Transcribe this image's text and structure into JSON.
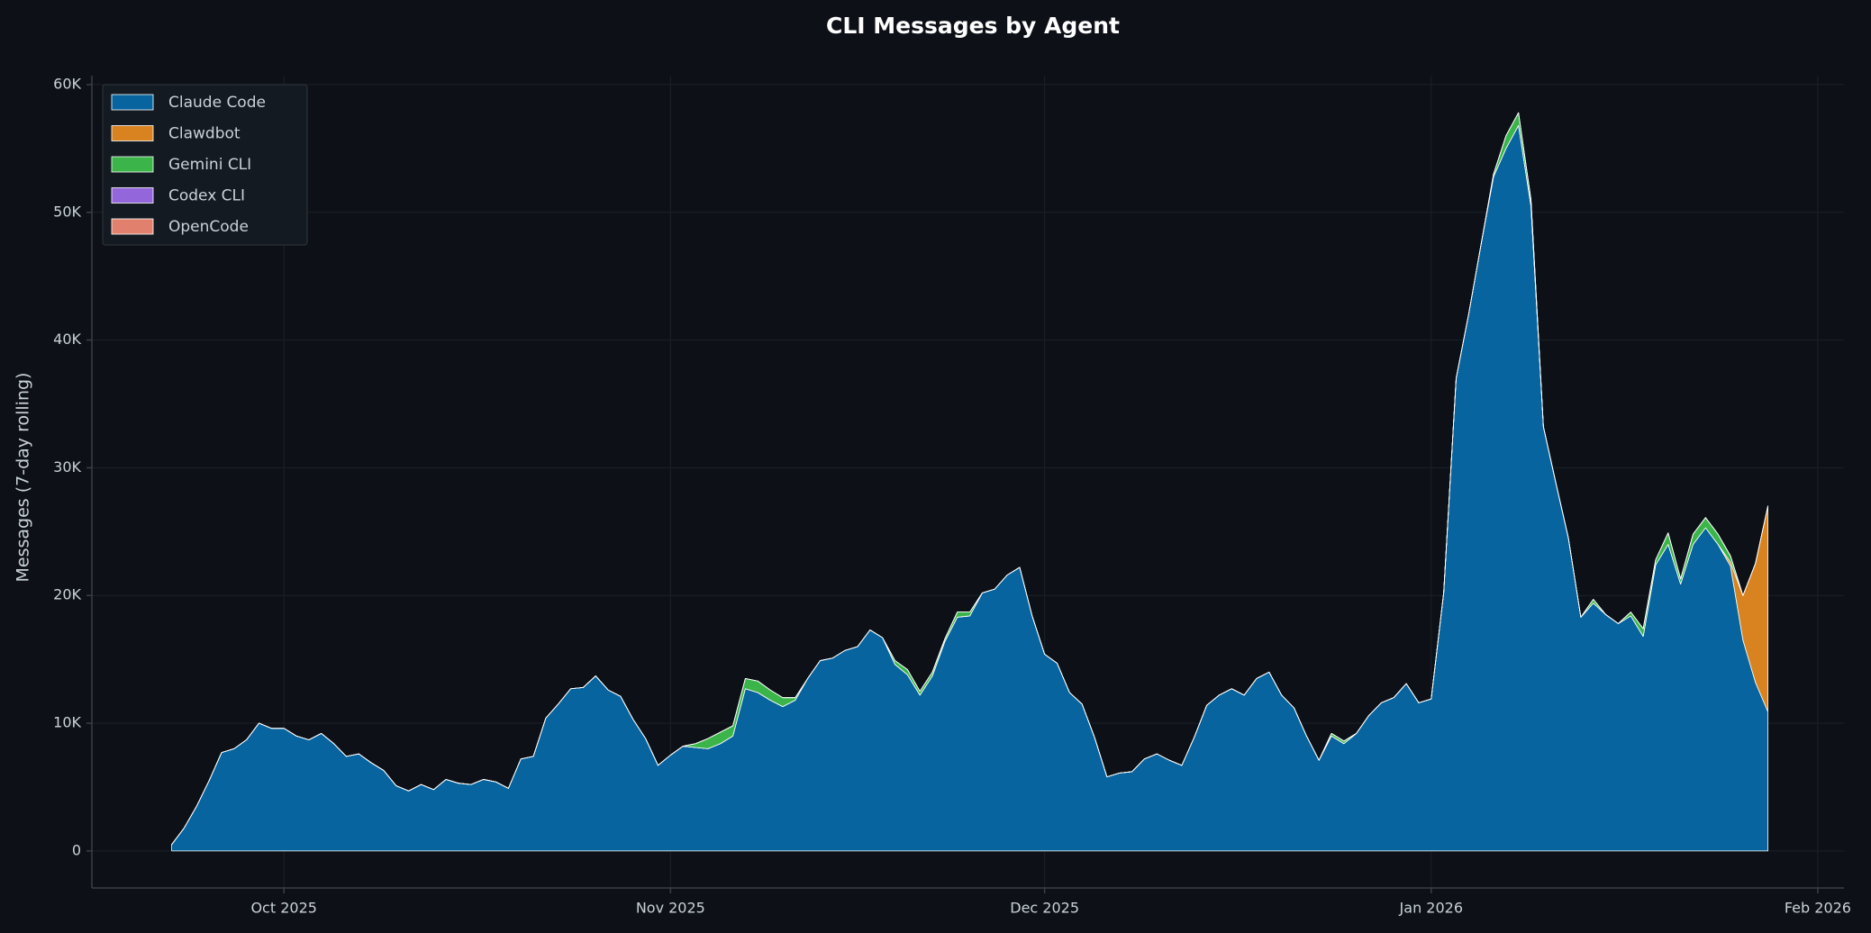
{
  "chart_data": {
    "type": "stacked_area",
    "title": "CLI Messages by Agent",
    "y_label": "Messages (7-day rolling)",
    "x": [
      0,
      1,
      2,
      3,
      4,
      5,
      6,
      7,
      8,
      9,
      10,
      11,
      12,
      13,
      14,
      15,
      16,
      17,
      18,
      19,
      20,
      21,
      22,
      23,
      24,
      25,
      26,
      27,
      28,
      29,
      30,
      31,
      32,
      33,
      34,
      35,
      36,
      37,
      38,
      39,
      40,
      41,
      42,
      43,
      44,
      45,
      46,
      47,
      48,
      49,
      50,
      51,
      52,
      53,
      54,
      55,
      56,
      57,
      58,
      59,
      60,
      61,
      62,
      63,
      64,
      65,
      66,
      67,
      68,
      69,
      70,
      71,
      72,
      73,
      74,
      75,
      76,
      77,
      78,
      79,
      80,
      81,
      82,
      83,
      84,
      85,
      86,
      87,
      88,
      89,
      90,
      91,
      92,
      93,
      94,
      95,
      96,
      97,
      98,
      99,
      100,
      101,
      102,
      103,
      104,
      105,
      106,
      107,
      108,
      109,
      110,
      111,
      112,
      113,
      114,
      115,
      116,
      117,
      118,
      119,
      120,
      121,
      122,
      123,
      124,
      125,
      126,
      127,
      128
    ],
    "xlim": [
      -6.4,
      134.1
    ],
    "xticks": [
      {
        "value": 9,
        "label": "Oct 2025"
      },
      {
        "value": 40,
        "label": "Nov 2025"
      },
      {
        "value": 70,
        "label": "Dec 2025"
      },
      {
        "value": 101,
        "label": "Jan 2026"
      },
      {
        "value": 132,
        "label": "Feb 2026"
      }
    ],
    "ylim": [
      -2900,
      60700
    ],
    "yticks": [
      0,
      {
        "value": 10000,
        "label": "10K"
      },
      {
        "value": 20000,
        "label": "20K"
      },
      {
        "value": 30000,
        "label": "30K"
      },
      {
        "value": 40000,
        "label": "40K"
      },
      {
        "value": 50000,
        "label": "50K"
      },
      {
        "value": 60000,
        "label": "60K"
      }
    ],
    "grid": true,
    "legend": "upper left",
    "series": [
      {
        "name": "Claude Code",
        "color": "#07649e",
        "values": [
          500,
          1800,
          3500,
          5500,
          7700,
          8000,
          8700,
          10000,
          9600,
          9600,
          9000,
          8700,
          9200,
          8400,
          7400,
          7600,
          6900,
          6300,
          5100,
          4700,
          5200,
          4800,
          5600,
          5300,
          5200,
          5600,
          5400,
          4900,
          7200,
          7400,
          10400,
          11500,
          12700,
          12800,
          13700,
          12600,
          12100,
          10300,
          8800,
          6700,
          7500,
          8200,
          8100,
          8000,
          8400,
          9000,
          12700,
          12400,
          11800,
          11300,
          11800,
          13500,
          14900,
          15100,
          15700,
          16000,
          17300,
          16700,
          14600,
          13800,
          12200,
          13700,
          16400,
          18300,
          18400,
          20200,
          20500,
          21600,
          22200,
          18400,
          15400,
          14700,
          12400,
          11500,
          8900,
          5800,
          6100,
          6200,
          7200,
          7600,
          7100,
          6700,
          8900,
          11400,
          12200,
          12700,
          12200,
          13500,
          14000,
          12200,
          11200,
          9000,
          7100,
          9000,
          8400,
          9200,
          10600,
          11600,
          12000,
          13100,
          11600,
          11900,
          20200,
          37000,
          42000,
          47500,
          52800,
          55000,
          56800,
          50500,
          33200,
          28800,
          24500,
          18300,
          19400,
          18500,
          17800,
          18400,
          16800,
          22400,
          24000,
          20900,
          24000,
          25300,
          24000,
          22300,
          16500,
          13200,
          10900
        ]
      },
      {
        "name": "Clawdbot",
        "color": "#d8831f",
        "values": [
          0,
          0,
          0,
          0,
          0,
          0,
          0,
          0,
          0,
          0,
          0,
          0,
          0,
          0,
          0,
          0,
          0,
          0,
          0,
          0,
          0,
          0,
          0,
          0,
          0,
          0,
          0,
          0,
          0,
          0,
          0,
          0,
          0,
          0,
          0,
          0,
          0,
          0,
          0,
          0,
          0,
          0,
          0,
          0,
          0,
          0,
          0,
          0,
          0,
          0,
          0,
          0,
          0,
          0,
          0,
          0,
          0,
          0,
          0,
          0,
          0,
          0,
          0,
          0,
          0,
          0,
          0,
          0,
          0,
          0,
          0,
          0,
          0,
          0,
          0,
          0,
          0,
          0,
          0,
          0,
          0,
          0,
          0,
          0,
          0,
          0,
          0,
          0,
          0,
          0,
          0,
          0,
          0,
          0,
          0,
          0,
          0,
          0,
          0,
          0,
          0,
          0,
          0,
          0,
          0,
          0,
          0,
          0,
          0,
          0,
          0,
          0,
          0,
          0,
          0,
          0,
          0,
          0,
          0,
          0,
          0,
          0,
          0,
          0,
          0,
          300,
          3500,
          9300,
          16100
        ]
      },
      {
        "name": "Gemini CLI",
        "color": "#3bb54a",
        "values": [
          0,
          0,
          0,
          0,
          0,
          0,
          0,
          0,
          0,
          0,
          0,
          0,
          0,
          0,
          0,
          0,
          0,
          0,
          0,
          0,
          0,
          0,
          0,
          0,
          0,
          0,
          0,
          0,
          0,
          0,
          0,
          0,
          0,
          0,
          0,
          0,
          0,
          0,
          0,
          0,
          0,
          0,
          300,
          800,
          900,
          800,
          800,
          900,
          800,
          700,
          200,
          0,
          0,
          0,
          0,
          0,
          0,
          0,
          300,
          400,
          300,
          300,
          200,
          400,
          300,
          0,
          0,
          0,
          0,
          0,
          0,
          0,
          0,
          0,
          0,
          0,
          0,
          0,
          0,
          0,
          0,
          0,
          0,
          0,
          0,
          0,
          0,
          0,
          0,
          0,
          0,
          0,
          0,
          200,
          200,
          0,
          0,
          0,
          0,
          0,
          0,
          0,
          0,
          0,
          0,
          0,
          200,
          1000,
          1000,
          500,
          0,
          0,
          0,
          0,
          300,
          0,
          0,
          300,
          600,
          400,
          900,
          400,
          800,
          800,
          800,
          500,
          0,
          0,
          0
        ]
      },
      {
        "name": "Codex CLI",
        "color": "#9466dc",
        "values": [
          0,
          0,
          0,
          0,
          0,
          0,
          0,
          0,
          0,
          0,
          0,
          0,
          0,
          0,
          0,
          0,
          0,
          0,
          0,
          0,
          0,
          0,
          0,
          0,
          0,
          0,
          0,
          0,
          0,
          0,
          0,
          0,
          0,
          0,
          0,
          0,
          0,
          0,
          0,
          0,
          0,
          0,
          0,
          0,
          0,
          0,
          0,
          0,
          0,
          0,
          0,
          0,
          0,
          0,
          0,
          0,
          0,
          0,
          0,
          0,
          0,
          0,
          0,
          0,
          0,
          0,
          0,
          0,
          0,
          0,
          0,
          0,
          0,
          0,
          0,
          0,
          0,
          0,
          0,
          0,
          0,
          0,
          0,
          0,
          0,
          0,
          0,
          0,
          0,
          0,
          0,
          0,
          0,
          0,
          0,
          0,
          0,
          0,
          0,
          0,
          0,
          0,
          0,
          0,
          0,
          0,
          0,
          0,
          0,
          0,
          0,
          0,
          0,
          0,
          0,
          0,
          0,
          0,
          0,
          0,
          0,
          0,
          0,
          0,
          0,
          0,
          0,
          0,
          0
        ]
      },
      {
        "name": "OpenCode",
        "color": "#e0806d",
        "values": [
          0,
          0,
          0,
          0,
          0,
          0,
          0,
          0,
          0,
          0,
          0,
          0,
          0,
          0,
          0,
          0,
          0,
          0,
          0,
          0,
          0,
          0,
          0,
          0,
          0,
          0,
          0,
          0,
          0,
          0,
          0,
          0,
          0,
          0,
          0,
          0,
          0,
          0,
          0,
          0,
          0,
          0,
          0,
          0,
          0,
          0,
          0,
          0,
          0,
          0,
          0,
          0,
          0,
          0,
          0,
          0,
          0,
          0,
          0,
          0,
          0,
          0,
          0,
          0,
          0,
          0,
          0,
          0,
          0,
          0,
          0,
          0,
          0,
          0,
          0,
          0,
          0,
          0,
          0,
          0,
          0,
          0,
          0,
          0,
          0,
          0,
          0,
          0,
          0,
          0,
          0,
          0,
          0,
          0,
          0,
          0,
          0,
          0,
          0,
          0,
          0,
          0,
          0,
          0,
          0,
          0,
          0,
          0,
          0,
          0,
          0,
          0,
          0,
          0,
          0,
          0,
          0,
          0,
          0,
          0,
          0,
          0,
          0,
          0,
          0,
          0,
          0,
          0,
          0
        ]
      }
    ]
  }
}
